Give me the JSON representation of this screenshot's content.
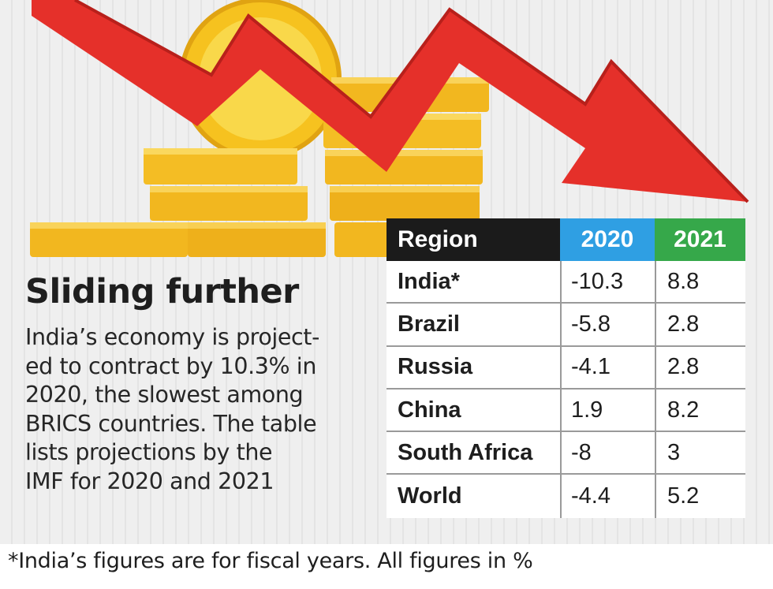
{
  "header": {
    "title": "Sliding further",
    "description_lines": [
      "India’s economy is project-",
      "ed to contract by 10.3% in",
      "2020, the slowest among",
      "BRICS countries. The table",
      "lists projections by the",
      "IMF for 2020 and 2021"
    ]
  },
  "colors": {
    "header_region": "#1b1b1b",
    "header_2020": "#2f9fe3",
    "header_2021": "#36a84a",
    "arrow_red": "#e5302a",
    "coin_gold": "#f2b71f"
  },
  "illustration": {
    "icons": [
      "down-trend-arrow-icon",
      "gold-coin-stack-icon"
    ]
  },
  "chart_data": {
    "type": "table",
    "columns": [
      "Region",
      "2020",
      "2021"
    ],
    "rows": [
      {
        "region": "India*",
        "y2020": "-10.3",
        "y2021": "8.8"
      },
      {
        "region": "Brazil",
        "y2020": "-5.8",
        "y2021": "2.8"
      },
      {
        "region": "Russia",
        "y2020": "-4.1",
        "y2021": "2.8"
      },
      {
        "region": "China",
        "y2020": "1.9",
        "y2021": "8.2"
      },
      {
        "region": "South Africa",
        "y2020": "-8",
        "y2021": "3"
      },
      {
        "region": "World",
        "y2020": "-4.4",
        "y2021": "5.2"
      }
    ]
  },
  "footnote": "*India’s figures are for fiscal years. All figures in %"
}
